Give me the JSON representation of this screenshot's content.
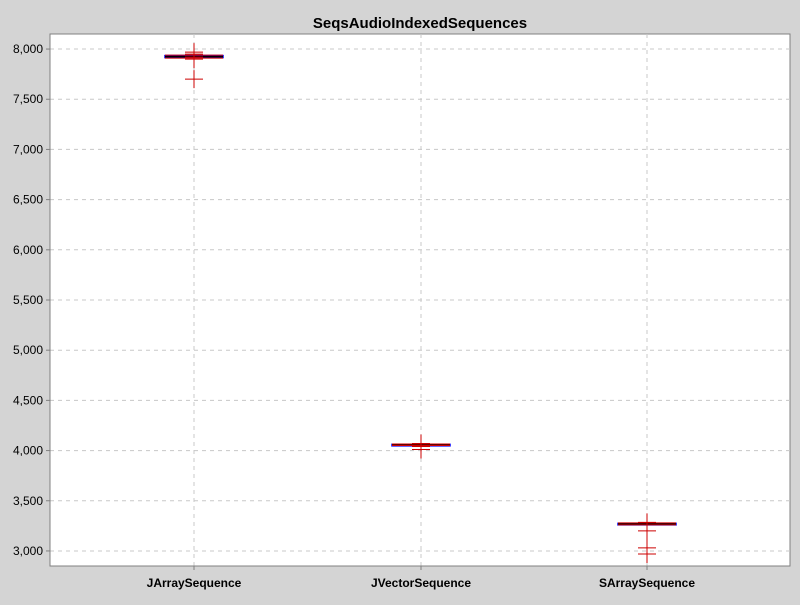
{
  "chart_data": {
    "type": "box",
    "title": "SeqsAudioIndexedSequences",
    "xlabel": "",
    "ylabel": "",
    "ylim": [
      2850,
      8150
    ],
    "y_ticks": [
      3000,
      3500,
      4000,
      4500,
      5000,
      5500,
      6000,
      6500,
      7000,
      7500,
      8000
    ],
    "y_tick_labels": [
      "3,000",
      "3,500",
      "4,000",
      "4,500",
      "5,000",
      "5,500",
      "6,000",
      "6,500",
      "7,000",
      "7,500",
      "8,000"
    ],
    "grid": true,
    "categories": [
      "JArraySequence",
      "JVectorSequence",
      "SArraySequence"
    ],
    "boxes": [
      {
        "category": "JArraySequence",
        "q1": 7915,
        "median": 7925,
        "q3": 7935,
        "whisker_low": 7910,
        "whisker_high": 7940,
        "outliers": [
          7700,
          7970,
          7950,
          7920,
          7900
        ]
      },
      {
        "category": "JVectorSequence",
        "q1": 4055,
        "median": 4058,
        "q3": 4062,
        "whisker_low": 4050,
        "whisker_high": 4065,
        "outliers": [
          4070,
          4040,
          4010
        ]
      },
      {
        "category": "SArraySequence",
        "q1": 3265,
        "median": 3270,
        "q3": 3275,
        "whisker_low": 3260,
        "whisker_high": 3280,
        "outliers": [
          3285,
          3200,
          3030,
          2970
        ]
      }
    ],
    "colors": {
      "background": "#d4d4d4",
      "plot_background": "#ffffff",
      "gridline": "#c8c8c8",
      "box_outline": "#0000ff",
      "whisker": "#000000",
      "median": "#000000",
      "outlier": "#cc0000",
      "axis": "#808080"
    }
  }
}
